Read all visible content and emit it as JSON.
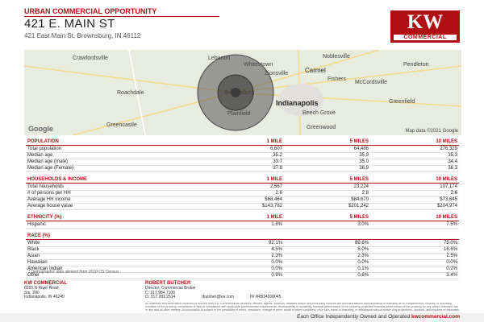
{
  "header": {
    "category": "URBAN COMMERCIAL OPPORTUNITY",
    "title": "421 E. MAIN ST",
    "address": "421 East Main St, Brownsburg, IN 46112"
  },
  "logo": {
    "mark": "KW",
    "sub": "COMMERCIAL"
  },
  "map": {
    "labels": [
      "Crawfordsville",
      "Lebanon",
      "Whitestown",
      "Noblesville",
      "Pendleton",
      "Zionsville",
      "Carmel",
      "Fishers",
      "McCordsville",
      "Roachdale",
      "Brownsburg",
      "Indianapolis",
      "Greenfield",
      "Plainfield",
      "Beech Grove",
      "Greencastle",
      "Greenwood"
    ],
    "brand": "Google",
    "attribution": "Map data ©2021 Google"
  },
  "sections": [
    {
      "title": "POPULATION",
      "columns": [
        "1 MILE",
        "5 MILES",
        "10 MILES"
      ],
      "rows": [
        {
          "label": "Total population",
          "values": [
            "6,607",
            "64,486",
            "276,329"
          ]
        },
        {
          "label": "Median age",
          "values": [
            "35.2",
            "35.9",
            "35.3"
          ]
        },
        {
          "label": "Median age (male)",
          "values": [
            "33.7",
            "35.0",
            "34.4"
          ]
        },
        {
          "label": "Median age (Female)",
          "values": [
            "37.8",
            "36.9",
            "36.3"
          ]
        }
      ]
    },
    {
      "title": "HOUSEHOLDS & INCOME",
      "columns": [
        "1 MILE",
        "5 MILES",
        "10 MILES"
      ],
      "rows": [
        {
          "label": "Total households",
          "values": [
            "2,567",
            "23,224",
            "107,174"
          ]
        },
        {
          "label": "# of persons per HH",
          "values": [
            "2.6",
            "2.8",
            "2.6"
          ]
        },
        {
          "label": "Average HH income",
          "values": [
            "$68,464",
            "$84,670",
            "$73,645"
          ]
        },
        {
          "label": "Average house value",
          "values": [
            "$143,782",
            "$201,242",
            "$204,974"
          ]
        }
      ]
    },
    {
      "title": "ETHNICITY (%)",
      "columns": [
        "1 MILE",
        "5 MILES",
        "10 MILES"
      ],
      "rows": [
        {
          "label": "Hispanic",
          "values": [
            "1.8%",
            "3.0%",
            "7.5%"
          ]
        }
      ]
    },
    {
      "title": "RACE (%)",
      "rows": [
        {
          "label": "White",
          "values": [
            "92.1%",
            "89.6%",
            "75.0%"
          ]
        },
        {
          "label": "Black",
          "values": [
            "4.5%",
            "6.0%",
            "16.6%"
          ]
        },
        {
          "label": "Asian",
          "values": [
            "2.3%",
            "2.3%",
            "2.5%"
          ]
        },
        {
          "label": "Hawaiian",
          "values": [
            "0.0%",
            "0.0%",
            "0.0%"
          ]
        },
        {
          "label": "American Indian",
          "values": [
            "0.0%",
            "0.1%",
            "0.2%"
          ]
        },
        {
          "label": "Other",
          "values": [
            "0.9%",
            "0.6%",
            "3.4%"
          ]
        }
      ]
    }
  ],
  "note": "* Demographic data derived from 2010 US Census",
  "footer": {
    "office": {
      "name": "KW COMMERCIAL",
      "lines": [
        "8555 N River Road,",
        "Ste. 200",
        "Indianapolis, IN 46240"
      ]
    },
    "agent": {
      "name": "ROBERT BUTCHER",
      "lines": [
        "Director, Commercial Broker",
        "C: 317.984.7100",
        "O: 317.281.2514",
        "rbutcher@kw.com",
        "IN #RB14000045"
      ]
    },
    "disclaimer": "All materials and information received or derived from KW Commercial its directors, officers, agents, advisors, affiliates and/or any third party sources are provided without representation or warranty as to completeness, veracity, or accuracy, condition of the property, compliance or lack of compliance with applicable governmental requirements, developability or suitability, financial performance of the property, projected financial performance of the property for any party's intended use or any and all other matters. All information is subject to the possibility of errors, omissions, change of price, rental or other conditions, prior sale, lease or financing, or withdrawal without notice. Any projections, opinions, assumptions or estimates are for example only, and they may not represent current or future performance of the property. You and your tax and legal advisors should conduct your own investigation of the property and transaction.",
    "tagline": "Each Office Independently Owned and Operated",
    "website": "kwcommercial.com"
  }
}
